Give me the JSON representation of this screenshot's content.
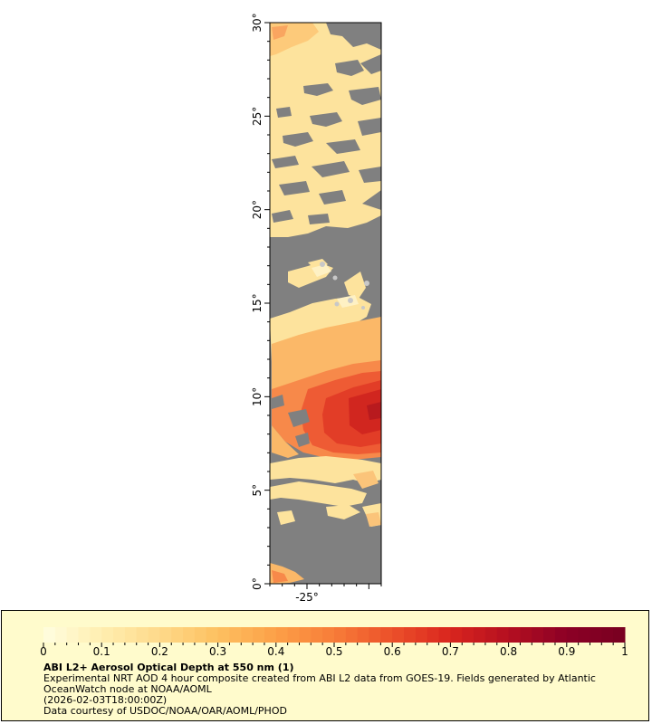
{
  "map": {
    "lat_labels": [
      "0°",
      "5°",
      "10°",
      "15°",
      "20°",
      "25°",
      "30°"
    ],
    "lat_values": [
      0,
      5,
      10,
      15,
      20,
      25,
      30
    ],
    "lon_labels": [
      "-25°"
    ],
    "lon_values": [
      -25
    ],
    "lon_range": [
      -28,
      -19
    ],
    "lat_range": [
      0,
      30
    ],
    "no_data_color": "#808080",
    "land_color": "#c8c8c8"
  },
  "legend": {
    "tick_labels": [
      "0",
      "0.1",
      "0.2",
      "0.3",
      "0.4",
      "0.5",
      "0.6",
      "0.7",
      "0.8",
      "0.9",
      "1"
    ],
    "range": [
      0,
      1
    ],
    "colors": [
      "#fffde0",
      "#ffeeb0",
      "#fed98a",
      "#fdc060",
      "#fca048",
      "#f77c38",
      "#ec502a",
      "#d9251e",
      "#b40f20",
      "#8c0025",
      "#780020"
    ],
    "title": "ABI L2+ Aerosol Optical Depth at 550 nm (1)",
    "line1": "Experimental NRT AOD 4 hour composite created from ABI L2 data from GOES-19. Fields generated by Atlantic OceanWatch node at NOAA/AOML",
    "line2": "(2026-02-03T18:00:00Z)",
    "line3": "Data courtesy of USDOC/NOAA/OAR/AOML/PHOD"
  }
}
